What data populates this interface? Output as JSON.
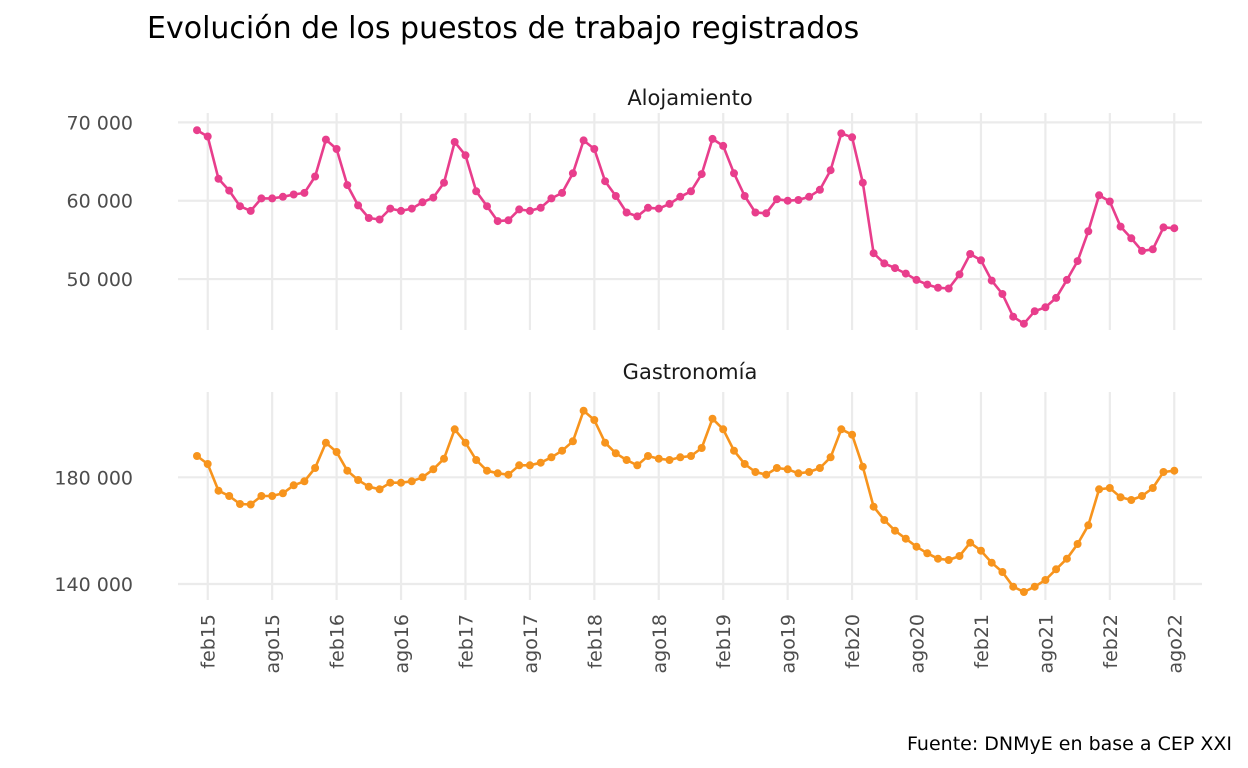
{
  "chart_data": {
    "type": "line",
    "title": "Evolución de los puestos de trabajo registrados",
    "caption": "Fuente: DNMyE en base a CEP XXI",
    "x_tick_labels": [
      "feb15",
      "ago15",
      "feb16",
      "ago16",
      "feb17",
      "ago17",
      "feb18",
      "ago18",
      "feb19",
      "ago19",
      "feb20",
      "ago20",
      "feb21",
      "ago21",
      "feb22",
      "ago22"
    ],
    "x_start": "2015-01",
    "x_end": "2022-09",
    "grid": true,
    "legend": "none",
    "panels": [
      {
        "name": "Alojamiento",
        "color": "#e83e8c",
        "y_ticks": [
          50000,
          60000,
          70000
        ],
        "y_tick_labels": [
          "50 000",
          "60 000",
          "70 000"
        ],
        "ylim": [
          43500,
          71200
        ],
        "values": [
          69000,
          68200,
          62800,
          61300,
          59300,
          58700,
          60300,
          60300,
          60500,
          60800,
          61000,
          63100,
          67800,
          66600,
          62000,
          59400,
          57800,
          57600,
          59000,
          58700,
          59000,
          59800,
          60400,
          62300,
          67500,
          65800,
          61200,
          59300,
          57400,
          57500,
          58900,
          58700,
          59100,
          60300,
          61000,
          63500,
          67700,
          66600,
          62500,
          60600,
          58500,
          58000,
          59100,
          59000,
          59600,
          60500,
          61200,
          63400,
          67900,
          67000,
          63500,
          60600,
          58500,
          58400,
          60200,
          60000,
          60100,
          60500,
          61400,
          63900,
          68600,
          68100,
          62300,
          53300,
          52000,
          51400,
          50700,
          49900,
          49300,
          48900,
          48800,
          50600,
          53200,
          52400,
          49800,
          48100,
          45200,
          44300,
          45900,
          46400,
          47600,
          49900,
          52300,
          56100,
          60700,
          59900,
          56700,
          55200,
          53600,
          53800,
          56600,
          56500
        ]
      },
      {
        "name": "Gastronomía",
        "color": "#f7941d",
        "y_ticks": [
          140000,
          180000
        ],
        "y_tick_labels": [
          "140 000",
          "180 000"
        ],
        "ylim": [
          134000,
          212000
        ],
        "values": [
          188000,
          185000,
          175000,
          173000,
          170000,
          169800,
          173000,
          173000,
          174000,
          177000,
          178500,
          183500,
          193000,
          189500,
          182500,
          179000,
          176500,
          175500,
          178000,
          178000,
          178500,
          180000,
          183000,
          187000,
          198000,
          193000,
          186500,
          182500,
          181500,
          181000,
          184500,
          184500,
          185500,
          187500,
          190000,
          193500,
          205000,
          201500,
          193000,
          189000,
          186500,
          184500,
          188000,
          187000,
          186500,
          187500,
          188000,
          191000,
          202000,
          198000,
          190000,
          185000,
          182000,
          181000,
          183500,
          183000,
          181500,
          182000,
          183500,
          187500,
          198000,
          196000,
          184000,
          169000,
          164000,
          160000,
          157000,
          154000,
          151500,
          149500,
          149000,
          150500,
          155500,
          152500,
          148000,
          144500,
          139000,
          137000,
          139000,
          141500,
          145500,
          149500,
          155000,
          162000,
          175500,
          176000,
          172500,
          171500,
          173000,
          176000,
          182000,
          182500
        ]
      }
    ]
  }
}
